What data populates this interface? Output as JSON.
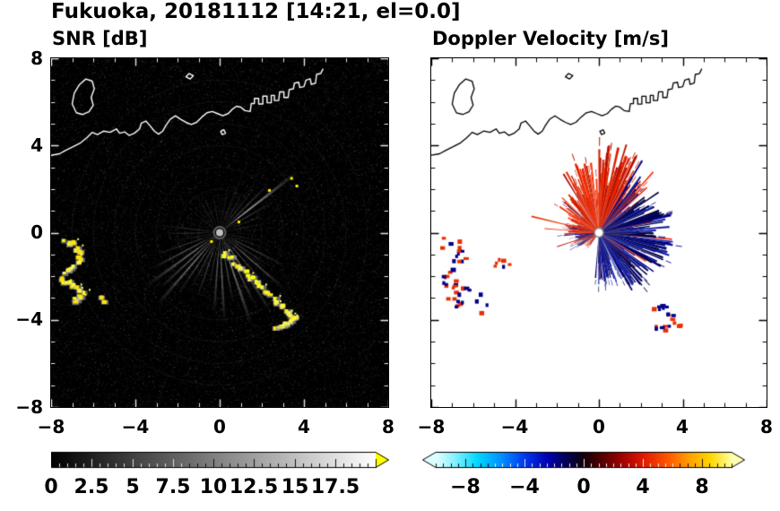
{
  "title": "Fukuoka, 20181112 [14:21, el=0.0]",
  "panels": {
    "snr": {
      "label": "SNR [dB]",
      "xticks": [
        "−8",
        "−4",
        "0",
        "4",
        "8"
      ],
      "yticks": [
        "8",
        "4",
        "0",
        "−4",
        "−8"
      ],
      "colorbar_ticks": [
        "0",
        "2.5",
        "5",
        "7.5",
        "10",
        "12.5",
        "15",
        "17.5"
      ]
    },
    "doppler": {
      "label": "Doppler Velocity [m/s]",
      "xticks": [
        "−8",
        "−4",
        "0",
        "4",
        "8"
      ],
      "colorbar_ticks": [
        "−8",
        "−4",
        "0",
        "4",
        "8"
      ]
    }
  },
  "coastline": [
    [
      [
        -8,
        3.55
      ],
      [
        -7.6,
        3.62
      ],
      [
        -7.3,
        3.78
      ],
      [
        -7,
        3.92
      ],
      [
        -6.6,
        4.12
      ],
      [
        -6.3,
        4.36
      ],
      [
        -6.05,
        4.6
      ],
      [
        -5.8,
        4.5
      ],
      [
        -5.5,
        4.66
      ],
      [
        -5.2,
        4.6
      ],
      [
        -4.9,
        4.76
      ],
      [
        -4.75,
        4.56
      ],
      [
        -4.5,
        4.62
      ],
      [
        -4.3,
        4.46
      ],
      [
        -4.05,
        4.56
      ],
      [
        -3.8,
        4.76
      ],
      [
        -3.72,
        5.02
      ],
      [
        -3.5,
        5.12
      ],
      [
        -3.3,
        4.9
      ],
      [
        -3.1,
        4.66
      ],
      [
        -2.9,
        4.52
      ],
      [
        -2.7,
        4.66
      ],
      [
        -2.55,
        4.92
      ],
      [
        -2.35,
        5.2
      ],
      [
        -2.1,
        5.36
      ],
      [
        -1.85,
        5.2
      ],
      [
        -1.6,
        5.06
      ],
      [
        -1.35,
        4.96
      ],
      [
        -1.1,
        5.06
      ],
      [
        -0.85,
        5.3
      ],
      [
        -0.6,
        5.5
      ],
      [
        -0.35,
        5.56
      ],
      [
        -0.1,
        5.46
      ],
      [
        0.15,
        5.36
      ],
      [
        0.4,
        5.46
      ],
      [
        0.6,
        5.66
      ],
      [
        0.8,
        5.8
      ],
      [
        1,
        5.76
      ],
      [
        1.2,
        5.6
      ],
      [
        1.45,
        5.56
      ],
      [
        1.5,
        5.92
      ],
      [
        1.65,
        5.92
      ],
      [
        1.65,
        6.16
      ],
      [
        1.85,
        6.16
      ],
      [
        1.85,
        5.9
      ],
      [
        2.05,
        5.9
      ],
      [
        2.05,
        6.26
      ],
      [
        2.25,
        6.26
      ],
      [
        2.25,
        5.96
      ],
      [
        2.45,
        5.96
      ],
      [
        2.45,
        6.3
      ],
      [
        2.6,
        6.3
      ],
      [
        2.6,
        6.06
      ],
      [
        2.8,
        6.06
      ],
      [
        2.85,
        6.46
      ],
      [
        3.05,
        6.46
      ],
      [
        3.05,
        6.2
      ],
      [
        3.25,
        6.2
      ],
      [
        3.3,
        6.56
      ],
      [
        3.5,
        6.6
      ],
      [
        3.55,
        6.86
      ],
      [
        3.75,
        6.9
      ],
      [
        3.8,
        6.66
      ],
      [
        4,
        6.7
      ],
      [
        4.1,
        7
      ],
      [
        4.3,
        7.06
      ],
      [
        4.35,
        6.8
      ],
      [
        4.55,
        6.86
      ],
      [
        4.6,
        7.26
      ],
      [
        4.8,
        7.3
      ],
      [
        4.9,
        7.5
      ]
    ],
    [
      [
        -6.8,
        5.5
      ],
      [
        -7,
        5.9
      ],
      [
        -6.9,
        6.4
      ],
      [
        -6.65,
        6.8
      ],
      [
        -6.35,
        7.05
      ],
      [
        -6.05,
        6.95
      ],
      [
        -5.95,
        6.6
      ],
      [
        -6.1,
        6.2
      ],
      [
        -6,
        5.85
      ],
      [
        -6.2,
        5.55
      ],
      [
        -6.5,
        5.42
      ],
      [
        -6.8,
        5.5
      ]
    ],
    [
      [
        -1.6,
        7.15
      ],
      [
        -1.45,
        7.3
      ],
      [
        -1.25,
        7.2
      ],
      [
        -1.4,
        7.05
      ],
      [
        -1.6,
        7.15
      ]
    ],
    [
      [
        0.05,
        4.65
      ],
      [
        0.2,
        4.72
      ],
      [
        0.28,
        4.56
      ],
      [
        0.12,
        4.5
      ],
      [
        0.05,
        4.65
      ]
    ]
  ],
  "chart_data": [
    {
      "type": "heatmap",
      "panel": "left",
      "suptitle": "Fukuoka, 20181112 [14:21, el=0.0]",
      "title": "SNR [dB]",
      "xlim": [
        -8,
        8
      ],
      "ylim": [
        -8,
        8
      ],
      "xticks": [
        -8,
        -4,
        0,
        4,
        8
      ],
      "yticks": [
        -8,
        -4,
        0,
        4,
        8
      ],
      "grid": false,
      "background": "#000000",
      "radar_center": [
        0,
        0
      ],
      "colorbar": {
        "vmin": 0,
        "vmax": 20,
        "ticks": [
          0,
          2.5,
          5,
          7.5,
          10,
          12.5,
          15,
          17.5
        ],
        "colormap": "black-to-white grayscale",
        "over_color": "#ffff00",
        "extend": "max"
      },
      "coastline_color": "#ffffff",
      "beams": [
        [
          12,
          1.9,
          0.5,
          0.16
        ],
        [
          22,
          2.3,
          0.6,
          0.2
        ],
        [
          30,
          2.9,
          0.8,
          0.3
        ],
        [
          38,
          4.7,
          1.1,
          0.5
        ],
        [
          45,
          3.3,
          0.8,
          0.34
        ],
        [
          52,
          2.7,
          0.7,
          0.28
        ],
        [
          60,
          2.3,
          0.7,
          0.24
        ],
        [
          70,
          2,
          0.6,
          0.2
        ],
        [
          80,
          2.3,
          0.7,
          0.2
        ],
        [
          90,
          1.7,
          0.5,
          0.15
        ],
        [
          100,
          2.1,
          0.6,
          0.17
        ],
        [
          112,
          1.8,
          0.6,
          0.15
        ],
        [
          122,
          2.2,
          0.7,
          0.18
        ],
        [
          133,
          1.7,
          0.5,
          0.14
        ],
        [
          142,
          2,
          0.6,
          0.16
        ],
        [
          152,
          1.6,
          0.5,
          0.12
        ],
        [
          162,
          2.1,
          0.6,
          0.15
        ],
        [
          172,
          1.8,
          0.5,
          0.14
        ],
        [
          181,
          2.7,
          0.8,
          0.26
        ],
        [
          190,
          2.3,
          0.6,
          0.2
        ],
        [
          199,
          3.1,
          0.8,
          0.28
        ],
        [
          208,
          3.7,
          1,
          0.36
        ],
        [
          216,
          4.3,
          1.1,
          0.42
        ],
        [
          223,
          3.9,
          1,
          0.38
        ],
        [
          229,
          4.5,
          1.1,
          0.44
        ],
        [
          236,
          3.5,
          0.9,
          0.32
        ],
        [
          243,
          2.9,
          0.8,
          0.28
        ],
        [
          251,
          3.3,
          0.9,
          0.3
        ],
        [
          259,
          2.7,
          0.8,
          0.26
        ],
        [
          266,
          3.9,
          1,
          0.36
        ],
        [
          273,
          4.3,
          1,
          0.4
        ],
        [
          281,
          3.5,
          0.9,
          0.32
        ],
        [
          289,
          4.7,
          1.1,
          0.44
        ],
        [
          296,
          3.9,
          1,
          0.36
        ],
        [
          303,
          4.5,
          1,
          0.4
        ],
        [
          311,
          3.3,
          0.9,
          0.3
        ],
        [
          319,
          4.1,
          1,
          0.38
        ],
        [
          326,
          2.9,
          0.8,
          0.28
        ],
        [
          333,
          3.5,
          0.9,
          0.3
        ],
        [
          341,
          2.5,
          0.7,
          0.22
        ],
        [
          349,
          2.1,
          0.6,
          0.18
        ],
        [
          357,
          1.7,
          0.5,
          0.15
        ]
      ],
      "high_snr_chains": {
        "A": [
          [
            -7.35,
            -0.4
          ],
          [
            -7,
            -0.5
          ],
          [
            -6.7,
            -0.75
          ],
          [
            -6.6,
            -1.1
          ],
          [
            -6.85,
            -1.45
          ],
          [
            -7.2,
            -1.8
          ],
          [
            -7.45,
            -2.15
          ],
          [
            -7.15,
            -2.35
          ],
          [
            -6.8,
            -2.45
          ],
          [
            -6.5,
            -2.7
          ],
          [
            -6.7,
            -3.05
          ],
          [
            -7.05,
            -3.2
          ]
        ],
        "A2": [
          [
            -5.75,
            -2.85
          ],
          [
            -5.5,
            -3.35
          ]
        ],
        "B": [
          [
            0.15,
            -0.85
          ],
          [
            0.5,
            -1.2
          ],
          [
            0.9,
            -1.55
          ],
          [
            1.3,
            -1.9
          ],
          [
            1.7,
            -2.2
          ],
          [
            2.05,
            -2.55
          ],
          [
            2.4,
            -2.85
          ],
          [
            2.75,
            -3.2
          ],
          [
            3.1,
            -3.5
          ],
          [
            3.45,
            -3.8
          ],
          [
            3.6,
            -4
          ],
          [
            3.2,
            -4.15
          ],
          [
            2.85,
            -4.35
          ],
          [
            2.6,
            -4.5
          ]
        ],
        "specks": [
          [
            2.3,
            2
          ],
          [
            3.35,
            2.55
          ],
          [
            3.6,
            2.2
          ],
          [
            0.85,
            0.55
          ],
          [
            -0.45,
            -0.35
          ]
        ]
      },
      "notes": "grayscale radial beams from radar at origin over black speckle background; yellow = SNR above colorbar max; white coastline of Hakata Bay along top"
    },
    {
      "type": "heatmap",
      "panel": "right",
      "title": "Doppler Velocity [m/s]",
      "xlim": [
        -8,
        8
      ],
      "ylim": [
        -8,
        8
      ],
      "xticks": [
        -8,
        -4,
        0,
        4,
        8
      ],
      "yticks": [
        -8,
        -4,
        0,
        4,
        8
      ],
      "grid": false,
      "background": "#ffffff",
      "radar_center": [
        0,
        0
      ],
      "colorbar": {
        "vmin": -10,
        "vmax": 10,
        "ticks": [
          -8,
          -4,
          0,
          4,
          8
        ],
        "colormap": "pale-cyan / blue / black / red / yellow doppler",
        "extend": "both"
      },
      "coastline_color": "#000000",
      "velocity_sectors": [
        {
          "from": -95,
          "to": -60,
          "color": "blue",
          "rmax": 2.4
        },
        {
          "from": -60,
          "to": -30,
          "color": "blue",
          "rmax": 3.2
        },
        {
          "from": -30,
          "to": 20,
          "color": "blue",
          "rmax": 3.6
        },
        {
          "from": 20,
          "to": 42,
          "color": "blue",
          "rmax": 2.9
        },
        {
          "from": 42,
          "to": 60,
          "color": "mix",
          "rmax": 3.6
        },
        {
          "from": 60,
          "to": 95,
          "color": "red",
          "rmax": 4.1
        },
        {
          "from": 95,
          "to": 125,
          "color": "red",
          "rmax": 3.4
        },
        {
          "from": 125,
          "to": 150,
          "color": "red",
          "rmax": 2.4
        },
        {
          "from": 150,
          "to": 185,
          "color": "red",
          "rmax": 1.7
        },
        {
          "from": 185,
          "to": 215,
          "color": "mix",
          "rmax": 1.3
        },
        {
          "from": 215,
          "to": 235,
          "color": "red",
          "rmax": 0.9
        }
      ],
      "special_rays": [
        [
          167,
          3.3,
          "red"
        ],
        [
          176,
          2.6,
          "red"
        ],
        [
          47,
          3.8,
          "red"
        ],
        [
          52,
          3.2,
          "blue"
        ],
        [
          58,
          3.9,
          "blue"
        ],
        [
          63,
          4,
          "red"
        ],
        [
          72,
          4.25,
          "red"
        ],
        [
          83,
          4.05,
          "red"
        ],
        [
          33,
          3.4,
          "blue"
        ],
        [
          14,
          3.6,
          "blue"
        ],
        [
          -12,
          3.3,
          "blue"
        ],
        [
          -40,
          3,
          "blue"
        ],
        [
          -70,
          2.6,
          "blue"
        ],
        [
          198,
          2.1,
          "red"
        ],
        [
          210,
          1.6,
          "blue"
        ]
      ],
      "scatter_clusters": [
        [
          -7.35,
          -0.4
        ],
        [
          -7,
          -0.5
        ],
        [
          -6.7,
          -0.75
        ],
        [
          -6.6,
          -1.1
        ],
        [
          -6.85,
          -1.45
        ],
        [
          -7.2,
          -1.8
        ],
        [
          -7.45,
          -2.15
        ],
        [
          -7.15,
          -2.35
        ],
        [
          -6.8,
          -2.45
        ],
        [
          -6.5,
          -2.7
        ],
        [
          -6.7,
          -3.05
        ],
        [
          -7.05,
          -3.2
        ],
        [
          -5.75,
          -2.85
        ],
        [
          -5.5,
          -3.35
        ],
        [
          2.75,
          -3.2
        ],
        [
          3.1,
          -3.5
        ],
        [
          3.45,
          -3.8
        ],
        [
          3.6,
          -4
        ],
        [
          3.2,
          -4.15
        ],
        [
          2.85,
          -4.35
        ],
        [
          -4.85,
          -1.3
        ],
        [
          -4.5,
          -1.55
        ]
      ],
      "notes": "red = positive radial velocities N-NW of radar, dark blue = negative velocities E-SE of radar; black coastline, white background"
    }
  ]
}
